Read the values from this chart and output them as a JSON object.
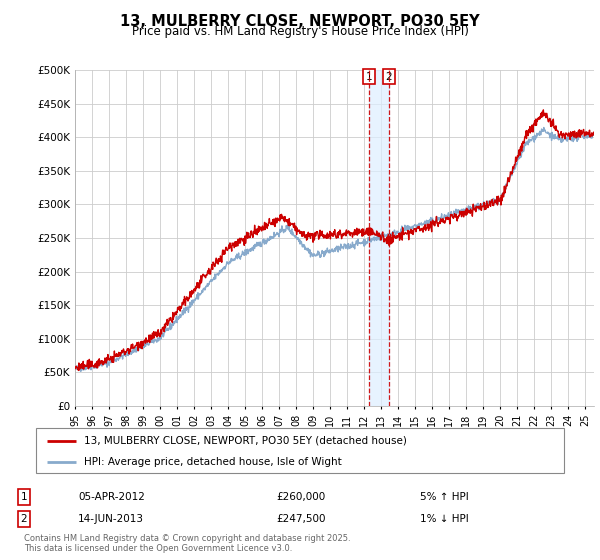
{
  "title": "13, MULBERRY CLOSE, NEWPORT, PO30 5EY",
  "subtitle": "Price paid vs. HM Land Registry's House Price Index (HPI)",
  "background_color": "#ffffff",
  "plot_bg_color": "#ffffff",
  "grid_color": "#cccccc",
  "legend_label_red": "13, MULBERRY CLOSE, NEWPORT, PO30 5EY (detached house)",
  "legend_label_blue": "HPI: Average price, detached house, Isle of Wight",
  "annotation_1_date": "05-APR-2012",
  "annotation_1_price": "£260,000",
  "annotation_1_hpi": "5% ↑ HPI",
  "annotation_2_date": "14-JUN-2013",
  "annotation_2_price": "£247,500",
  "annotation_2_hpi": "1% ↓ HPI",
  "footer": "Contains HM Land Registry data © Crown copyright and database right 2025.\nThis data is licensed under the Open Government Licence v3.0.",
  "ylim": [
    0,
    500000
  ],
  "yticks": [
    0,
    50000,
    100000,
    150000,
    200000,
    250000,
    300000,
    350000,
    400000,
    450000,
    500000
  ],
  "red_color": "#cc0000",
  "blue_color": "#88aacc",
  "shade_color": "#ddeeff",
  "vline1_x": 2012.26,
  "vline2_x": 2013.45,
  "sale_dates": [
    2012.26,
    2013.45
  ],
  "sale_prices": [
    260000,
    247500
  ],
  "xlim_start": 1995,
  "xlim_end": 2025.5,
  "xtick_years": [
    1995,
    1996,
    1997,
    1998,
    1999,
    2000,
    2001,
    2002,
    2003,
    2004,
    2005,
    2006,
    2007,
    2008,
    2009,
    2010,
    2011,
    2012,
    2013,
    2014,
    2015,
    2016,
    2017,
    2018,
    2019,
    2020,
    2021,
    2022,
    2023,
    2024,
    2025
  ],
  "xtick_labels": [
    "95",
    "96",
    "97",
    "98",
    "99",
    "00",
    "01",
    "02",
    "03",
    "04",
    "05",
    "06",
    "07",
    "08",
    "09",
    "10",
    "11",
    "12",
    "13",
    "14",
    "15",
    "16",
    "17",
    "18",
    "19",
    "20",
    "21",
    "22",
    "23",
    "24",
    "25"
  ]
}
